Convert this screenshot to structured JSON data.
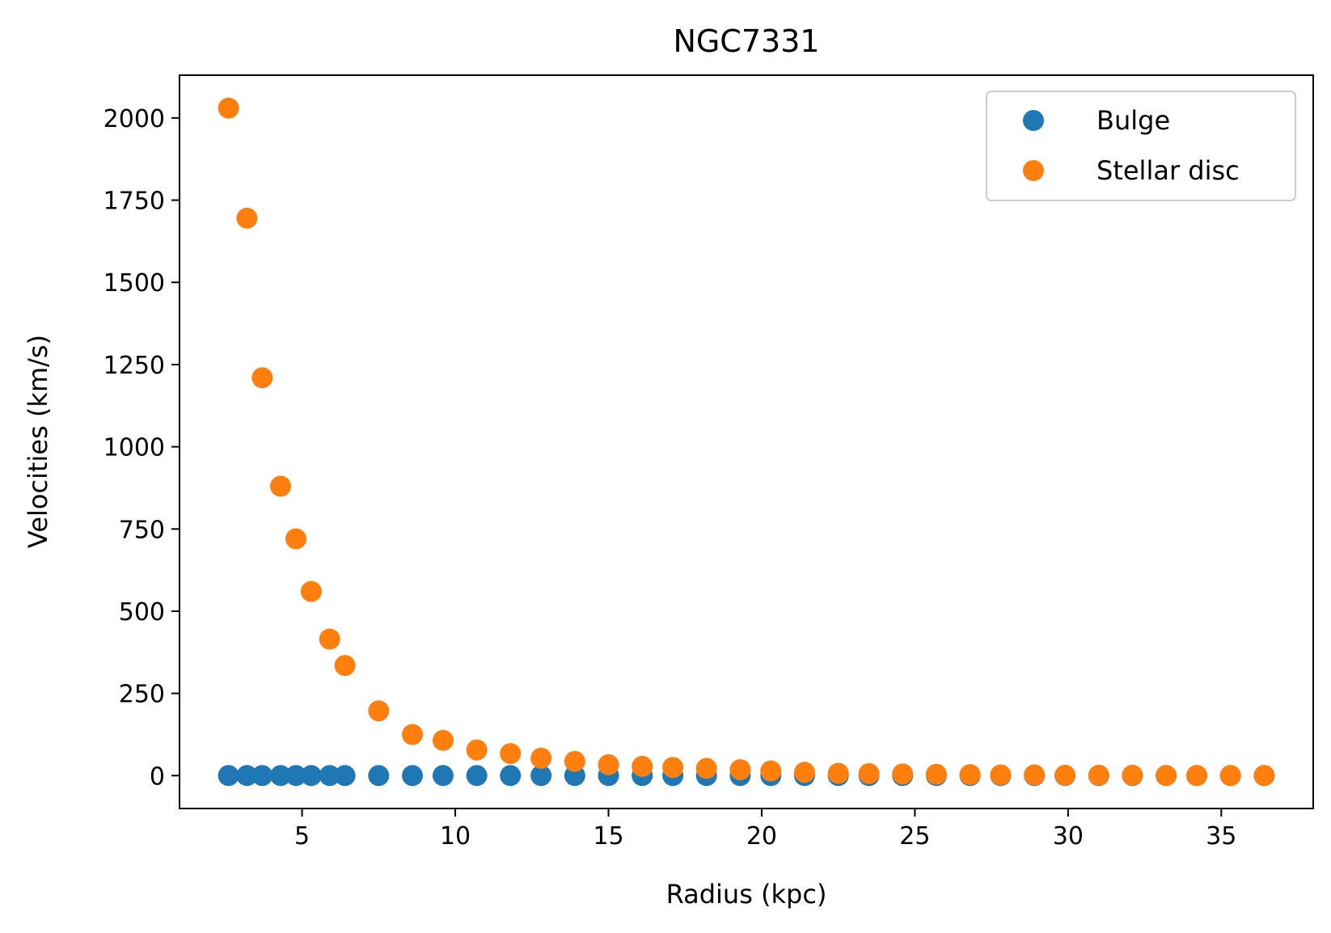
{
  "chart_data": {
    "type": "scatter",
    "title": "NGC7331",
    "xlabel": "Radius (kpc)",
    "ylabel": "Velocities (km/s)",
    "xlim": [
      1.0,
      38.0
    ],
    "ylim": [
      -100,
      2130
    ],
    "xticks": [
      5,
      10,
      15,
      20,
      25,
      30,
      35
    ],
    "yticks": [
      0,
      250,
      500,
      750,
      1000,
      1250,
      1500,
      1750,
      2000
    ],
    "legend_position": "top-right",
    "grid": false,
    "series": [
      {
        "name": "Bulge",
        "color": "#1f77b4",
        "x": [
          2.6,
          3.2,
          3.7,
          4.3,
          4.8,
          5.3,
          5.9,
          6.4,
          7.5,
          8.6,
          9.6,
          10.7,
          11.8,
          12.8,
          13.9,
          15.0,
          16.1,
          17.1,
          18.2,
          19.3,
          20.3,
          21.4,
          22.5,
          23.5,
          24.6,
          25.7,
          26.8,
          27.8,
          28.9,
          29.9,
          31.0,
          32.1,
          33.2,
          34.2,
          35.3,
          36.4
        ],
        "y": [
          0,
          0,
          0,
          0,
          0,
          0,
          0,
          0,
          0,
          0,
          0,
          0,
          0,
          0,
          0,
          0,
          0,
          0,
          0,
          0,
          0,
          0,
          0,
          0,
          0,
          0,
          0,
          0,
          0,
          0,
          0,
          0,
          0,
          0,
          0,
          0
        ]
      },
      {
        "name": "Stellar disc",
        "color": "#ff7f0e",
        "x": [
          2.6,
          3.2,
          3.7,
          4.3,
          4.8,
          5.3,
          5.9,
          6.4,
          7.5,
          8.6,
          9.6,
          10.7,
          11.8,
          12.8,
          13.9,
          15.0,
          16.1,
          17.1,
          18.2,
          19.3,
          20.3,
          21.4,
          22.5,
          23.5,
          24.6,
          25.7,
          26.8,
          27.8,
          28.9,
          29.9,
          31.0,
          32.1,
          33.2,
          34.2,
          35.3,
          36.4
        ],
        "y": [
          2030,
          1695,
          1210,
          880,
          720,
          560,
          415,
          335,
          197,
          125,
          107,
          78,
          67,
          53,
          43,
          33,
          28,
          25,
          22,
          18,
          14,
          10,
          7,
          6,
          5,
          4,
          3,
          2,
          2,
          1,
          1,
          1,
          0,
          0,
          0,
          0
        ]
      }
    ]
  }
}
